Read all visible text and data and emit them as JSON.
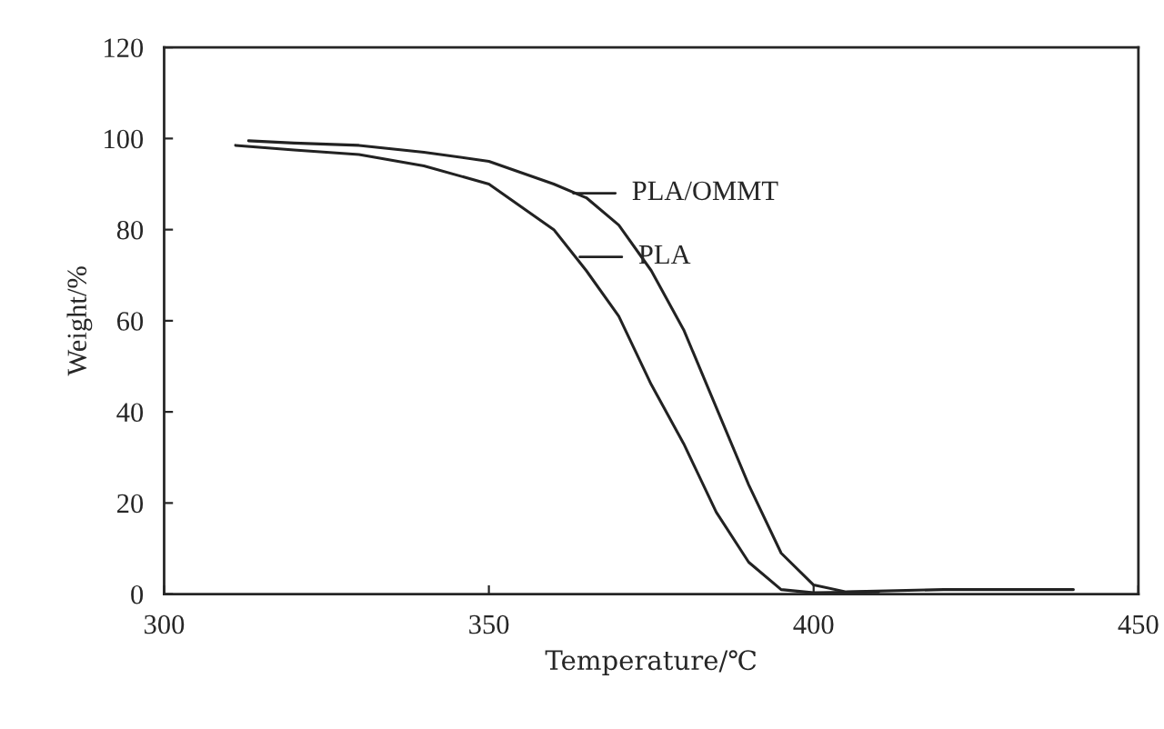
{
  "chart_data": {
    "type": "line",
    "xlabel": "Temperature/℃",
    "ylabel": "Weight/%",
    "xlim": [
      300,
      450
    ],
    "xticks": [
      300,
      350,
      400,
      450
    ],
    "ylim": [
      0,
      120
    ],
    "yticks": [
      0,
      20,
      40,
      60,
      80,
      100,
      120
    ],
    "grid": false,
    "legend": false,
    "marker": "none",
    "line_style": "solid",
    "series": [
      {
        "color": "#222222",
        "x": [
          311,
          320,
          330,
          340,
          350,
          360,
          365,
          370,
          375,
          380,
          385,
          390,
          395,
          400,
          410
        ],
        "values": [
          98.5,
          97.5,
          96.5,
          94,
          90,
          80,
          71,
          61,
          46,
          33,
          18,
          7,
          1,
          0.3,
          0.5
        ]
      },
      {
        "color": "#222222",
        "x": [
          313,
          320,
          330,
          340,
          350,
          360,
          365,
          370,
          375,
          380,
          385,
          390,
          395,
          400,
          405,
          420,
          440
        ],
        "values": [
          99.5,
          99,
          98.5,
          97,
          95,
          90,
          87,
          81,
          71,
          58,
          41,
          24,
          9,
          2,
          0.5,
          1,
          1
        ]
      }
    ],
    "annotations": [
      {
        "text": "PLA/OMMT",
        "x": 363,
        "y": 88
      },
      {
        "text": "PLA",
        "x": 364,
        "y": 74
      }
    ]
  }
}
